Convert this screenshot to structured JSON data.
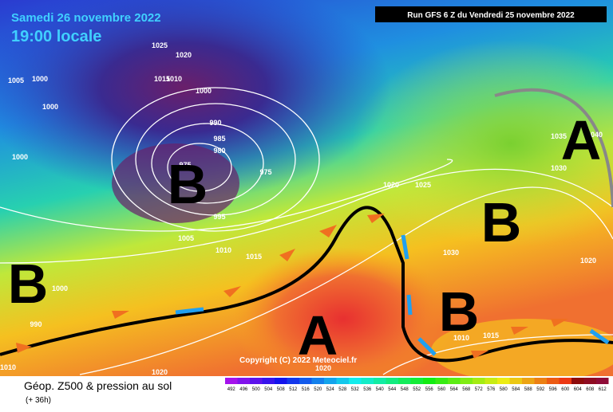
{
  "header": {
    "date": "Samedi 26 novembre 2022",
    "time": "19:00 locale",
    "run": "Run GFS 6 Z du Vendredi 25 novembre 2022"
  },
  "copyright": "Copyright (C) 2022 Meteociel.fr",
  "footer": {
    "title": "Géop. Z500 & pression au sol",
    "lead": "(+ 36h)"
  },
  "pressure_systems": [
    "B",
    "B",
    "B",
    "A",
    "B",
    "A"
  ],
  "isobar_labels": [
    1025,
    1020,
    1005,
    1000,
    1015,
    1010,
    1000,
    1000,
    990,
    985,
    980,
    975,
    975,
    1000,
    995,
    1005,
    1010,
    1015,
    1020,
    1025,
    1030,
    1035,
    1040,
    1030,
    1020,
    1000,
    990,
    1010,
    1020,
    1020,
    1010,
    1015
  ],
  "scale": [
    492,
    496,
    500,
    504,
    508,
    512,
    516,
    520,
    524,
    528,
    532,
    536,
    540,
    544,
    548,
    552,
    556,
    560,
    564,
    568,
    572,
    576,
    580,
    584,
    588,
    592,
    596,
    600,
    604,
    608,
    612
  ]
}
